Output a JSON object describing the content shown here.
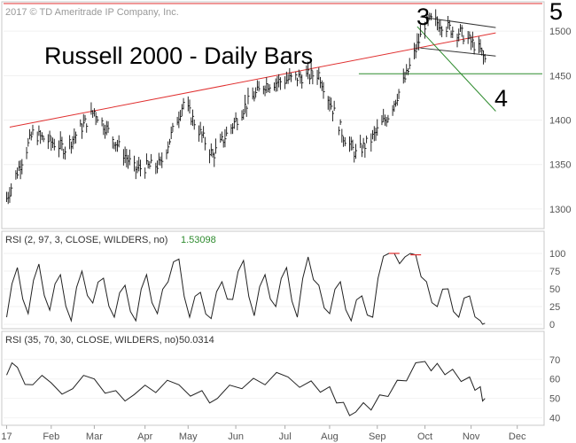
{
  "chart_data": [
    {
      "type": "bar",
      "title": "Russell 2000 - Daily Bars",
      "copyright": "2017 © TD Ameritrade IP Company, Inc.",
      "y_ticks": [
        "1500",
        "1450",
        "1400",
        "1350",
        "1300"
      ],
      "ylim": [
        1282,
        1527
      ],
      "wave_labels": [
        "3",
        "4",
        "5"
      ],
      "x_dates": [
        "2017-01-03",
        "2017-01-20",
        "2017-02-10",
        "2017-03-01",
        "2017-03-27",
        "2017-04-13",
        "2017-04-28",
        "2017-05-17",
        "2017-06-08",
        "2017-06-20",
        "2017-07-12",
        "2017-07-25",
        "2017-08-10",
        "2017-08-18",
        "2017-08-28",
        "2017-09-08",
        "2017-09-20",
        "2017-10-02",
        "2017-10-06",
        "2017-10-13",
        "2017-10-19",
        "2017-10-25",
        "2017-11-01",
        "2017-11-07",
        "2017-11-10"
      ],
      "closes": [
        1312,
        1385,
        1368,
        1410,
        1345,
        1350,
        1420,
        1360,
        1418,
        1440,
        1448,
        1452,
        1382,
        1362,
        1378,
        1405,
        1450,
        1508,
        1512,
        1508,
        1502,
        1498,
        1488,
        1478,
        1468
      ],
      "lines": {
        "red_trendline": {
          "from": [
            "2017-01-05",
            1392
          ],
          "to": [
            "2017-11-17",
            1498
          ],
          "color": "#e03030"
        },
        "red_horizontal": {
          "value": 1531,
          "color": "#e03030"
        },
        "green_horizontal": {
          "value": 1452,
          "color": "#2e8b2e"
        },
        "green_trendline": {
          "from": [
            "2017-09-27",
            1505
          ],
          "to": [
            "2017-11-17",
            1410
          ],
          "color": "#2e8b2e"
        },
        "channel_upper": {
          "from": [
            "2017-09-29",
            1516
          ],
          "to": [
            "2017-11-17",
            1504
          ],
          "color": "#333333"
        },
        "channel_lower": {
          "from": [
            "2017-09-29",
            1481
          ],
          "to": [
            "2017-11-17",
            1472
          ],
          "color": "#333333"
        }
      }
    },
    {
      "type": "line",
      "title": "RSI (2, 97, 3, CLOSE, WILDERS, no)",
      "last_value": "1.53098",
      "title_color": "#2e8b2e",
      "y_ticks": [
        "100",
        "75",
        "50",
        "25",
        "0"
      ],
      "ylim": [
        0,
        100
      ],
      "overbought": 97,
      "oversold": 3,
      "x_dates": [
        "2017-01-03",
        "2017-01-10",
        "2017-01-17",
        "2017-01-24",
        "2017-01-31",
        "2017-02-07",
        "2017-02-14",
        "2017-02-21",
        "2017-02-28",
        "2017-03-07",
        "2017-03-14",
        "2017-03-21",
        "2017-03-28",
        "2017-04-04",
        "2017-04-11",
        "2017-04-18",
        "2017-04-25",
        "2017-05-02",
        "2017-05-09",
        "2017-05-16",
        "2017-05-23",
        "2017-05-30",
        "2017-06-06",
        "2017-06-13",
        "2017-06-20",
        "2017-06-27",
        "2017-07-04",
        "2017-07-11",
        "2017-07-18",
        "2017-07-25",
        "2017-08-01",
        "2017-08-08",
        "2017-08-15",
        "2017-08-22",
        "2017-08-29",
        "2017-09-05",
        "2017-09-12",
        "2017-09-19",
        "2017-09-26",
        "2017-10-03",
        "2017-10-10",
        "2017-10-17",
        "2017-10-24",
        "2017-10-31",
        "2017-11-07",
        "2017-11-10"
      ],
      "values": [
        10,
        80,
        15,
        85,
        20,
        70,
        5,
        75,
        30,
        65,
        10,
        55,
        5,
        70,
        15,
        60,
        92,
        10,
        45,
        8,
        60,
        35,
        90,
        12,
        70,
        25,
        80,
        10,
        95,
        55,
        15,
        60,
        5,
        40,
        10,
        96,
        100,
        95,
        98,
        60,
        25,
        50,
        10,
        40,
        5,
        1.5
      ]
    },
    {
      "type": "line",
      "title": "RSI (35, 70, 30, CLOSE, WILDERS, no)",
      "last_value": "50.0314",
      "y_ticks": [
        "70",
        "60",
        "50",
        "40"
      ],
      "ylim": [
        38,
        74
      ],
      "x_ticks": [
        "17",
        "Feb",
        "Mar",
        "Apr",
        "May",
        "Jun",
        "Jul",
        "Aug",
        "Sep",
        "Oct",
        "Nov",
        "Dec"
      ],
      "x_tick_dates": [
        "2017-01-03",
        "2017-02-01",
        "2017-03-01",
        "2017-04-03",
        "2017-05-01",
        "2017-06-01",
        "2017-07-03",
        "2017-08-01",
        "2017-09-01",
        "2017-10-02",
        "2017-11-01",
        "2017-12-01"
      ],
      "x_dates": [
        "2017-01-03",
        "2017-01-10",
        "2017-01-20",
        "2017-02-01",
        "2017-02-15",
        "2017-03-01",
        "2017-03-15",
        "2017-03-27",
        "2017-04-10",
        "2017-04-25",
        "2017-05-10",
        "2017-05-20",
        "2017-06-05",
        "2017-06-20",
        "2017-07-05",
        "2017-07-20",
        "2017-08-01",
        "2017-08-10",
        "2017-08-18",
        "2017-08-28",
        "2017-09-08",
        "2017-09-20",
        "2017-10-02",
        "2017-10-10",
        "2017-10-20",
        "2017-10-31",
        "2017-11-07",
        "2017-11-10"
      ],
      "values": [
        62,
        66,
        57,
        58,
        55,
        60,
        54,
        52,
        53,
        57,
        54,
        50,
        55,
        57,
        61,
        59,
        56,
        48,
        43,
        44,
        51,
        59,
        69,
        68,
        65,
        61,
        56,
        50
      ]
    }
  ]
}
